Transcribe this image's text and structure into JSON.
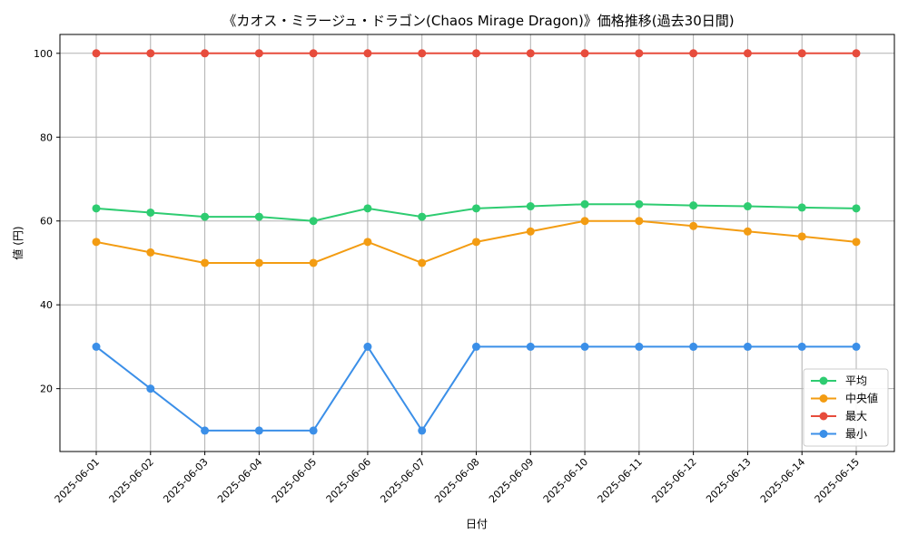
{
  "chart_data": {
    "type": "line",
    "title": "《カオス・ミラージュ・ドラゴン(Chaos Mirage Dragon)》価格推移(過去30日間)",
    "xlabel": "日付",
    "ylabel": "値 (円)",
    "ylim": [
      5,
      104.5
    ],
    "yticks": [
      20,
      40,
      60,
      80,
      100
    ],
    "grid": true,
    "legend_position": "lower-right",
    "x": [
      "2025-06-01",
      "2025-06-02",
      "2025-06-03",
      "2025-06-04",
      "2025-06-05",
      "2025-06-06",
      "2025-06-07",
      "2025-06-08",
      "2025-06-09",
      "2025-06-10",
      "2025-06-11",
      "2025-06-12",
      "2025-06-13",
      "2025-06-14",
      "2025-06-15"
    ],
    "series": [
      {
        "name": "平均",
        "color": "#2ecc71",
        "values": [
          63,
          62,
          61,
          61,
          60,
          63,
          61,
          63,
          63.5,
          64,
          64,
          63.7,
          63.5,
          63.2,
          63
        ]
      },
      {
        "name": "中央値",
        "color": "#f39c12",
        "values": [
          55,
          52.5,
          50,
          50,
          50,
          55,
          50,
          55,
          57.5,
          60,
          60,
          58.8,
          57.5,
          56.3,
          55
        ]
      },
      {
        "name": "最大",
        "color": "#e74c3c",
        "values": [
          100,
          100,
          100,
          100,
          100,
          100,
          100,
          100,
          100,
          100,
          100,
          100,
          100,
          100,
          100
        ]
      },
      {
        "name": "最小",
        "color": "#3b8fe8",
        "values": [
          30,
          20,
          10,
          10,
          10,
          30,
          10,
          30,
          30,
          30,
          30,
          30,
          30,
          30,
          30
        ]
      }
    ]
  }
}
